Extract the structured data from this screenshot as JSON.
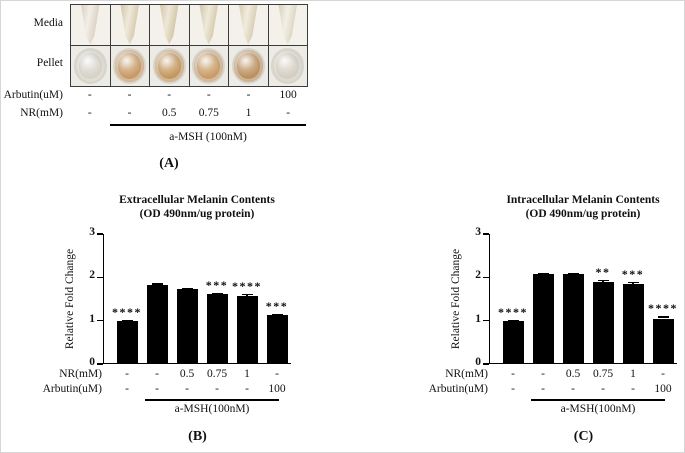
{
  "figure": {
    "background": "#ffffff",
    "border_color": "#d6d6d6",
    "bar_color": "#000000"
  },
  "panel_a": {
    "letter": "(A)",
    "row_labels": {
      "media": "Media",
      "pellet": "Pellet"
    },
    "treatment_rows": [
      {
        "label": "Arbutin(uM)",
        "values": [
          "-",
          "-",
          "-",
          "-",
          "-",
          "100"
        ]
      },
      {
        "label": "NR(mM)",
        "values": [
          "-",
          "-",
          "0.5",
          "0.75",
          "1",
          "-"
        ]
      }
    ],
    "group_label": "a-MSH (100nM)",
    "photo_columns": [
      {
        "media_color": "#e7dcd0",
        "pellet_color": "#d7d3c8"
      },
      {
        "media_color": "#ded2b3",
        "pellet_color": "#c79a66"
      },
      {
        "media_color": "#dccfae",
        "pellet_color": "#c4975f"
      },
      {
        "media_color": "#ded2b2",
        "pellet_color": "#c89c68"
      },
      {
        "media_color": "#e2d8bc",
        "pellet_color": "#bb9160"
      },
      {
        "media_color": "#e7e0cd",
        "pellet_color": "#d5cfc2"
      }
    ]
  },
  "chart_data": [
    {
      "type": "bar",
      "panel_letter": "(B)",
      "title": "Extracellular Melanin Contents",
      "subtitle": "(OD 490nm/ug protein)",
      "ylabel": "Relative Fold Change",
      "ylim": [
        0,
        3
      ],
      "yticks": [
        0,
        1,
        2,
        3
      ],
      "grid": false,
      "legend": null,
      "bar_color": "#000000",
      "values": [
        1.0,
        1.82,
        1.74,
        1.61,
        1.57,
        1.12
      ],
      "errors": [
        0.02,
        0.04,
        0.02,
        0.03,
        0.05,
        0.04
      ],
      "significance": [
        "****",
        "",
        "",
        "***",
        "****",
        "***"
      ],
      "category_rows": [
        {
          "label": "NR(mM)",
          "values": [
            "-",
            "-",
            "0.5",
            "0.75",
            "1",
            "-"
          ]
        },
        {
          "label": "Arbutin(uM)",
          "values": [
            "-",
            "-",
            "-",
            "-",
            "-",
            "100"
          ]
        }
      ],
      "group_span": {
        "start_bar": 2,
        "end_bar": 6,
        "label": "a-MSH(100nM)"
      }
    },
    {
      "type": "bar",
      "panel_letter": "(C)",
      "title": "Intracellular Melanin Contents",
      "subtitle": "(OD 490nm/ug protein)",
      "ylabel": "Relative Fold Change",
      "ylim": [
        0,
        3
      ],
      "yticks": [
        0,
        1,
        2,
        3
      ],
      "grid": false,
      "legend": null,
      "bar_color": "#000000",
      "values": [
        1.0,
        2.08,
        2.08,
        1.89,
        1.85,
        1.05
      ],
      "errors": [
        0.02,
        0.03,
        0.03,
        0.05,
        0.04,
        0.05
      ],
      "significance": [
        "****",
        "",
        "",
        "**",
        "***",
        "****"
      ],
      "category_rows": [
        {
          "label": "NR(mM)",
          "values": [
            "-",
            "-",
            "0.5",
            "0.75",
            "1",
            "-"
          ]
        },
        {
          "label": "Arbutin(uM)",
          "values": [
            "-",
            "-",
            "-",
            "-",
            "-",
            "100"
          ]
        }
      ],
      "group_span": {
        "start_bar": 2,
        "end_bar": 6,
        "label": "a-MSH(100nM)"
      }
    }
  ]
}
